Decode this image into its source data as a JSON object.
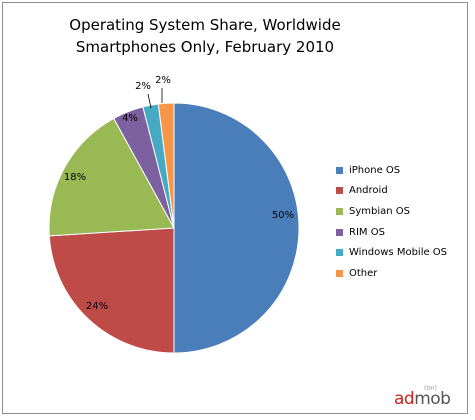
{
  "chart_data": {
    "type": "pie",
    "title": "Operating System Share, Worldwide",
    "subtitle": "Smartphones Only, February 2010",
    "slices": [
      {
        "name": "iPhone OS",
        "value": 50,
        "label": "50%",
        "color": "#4a7ebb"
      },
      {
        "name": "Android",
        "value": 24,
        "label": "24%",
        "color": "#be4b48"
      },
      {
        "name": "Symbian OS",
        "value": 18,
        "label": "18%",
        "color": "#98b954"
      },
      {
        "name": "RIM OS",
        "value": 4,
        "label": "4%",
        "color": "#7d60a0"
      },
      {
        "name": "Windows Mobile OS",
        "value": 2,
        "label": "2%",
        "color": "#46aac5"
      },
      {
        "name": "Other",
        "value": 2,
        "label": "2%",
        "color": "#f79646"
      }
    ],
    "legend_position": "right"
  },
  "brand": {
    "ad": "ad",
    "mob": "mob",
    "tm": "(tm)"
  }
}
